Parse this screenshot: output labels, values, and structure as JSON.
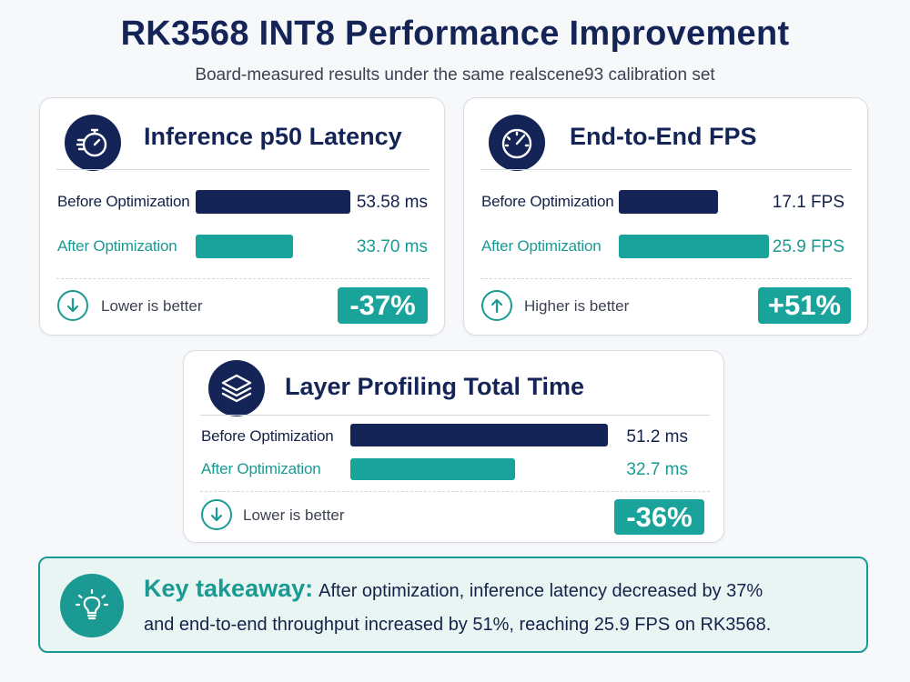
{
  "header": {
    "title": "RK3568 INT8 Performance Improvement",
    "subtitle": "Board-measured results under the same realscene93 calibration set"
  },
  "colors": {
    "before": "#142457",
    "after": "#1aa39b",
    "accent": "#1a9a92"
  },
  "chart_data": [
    {
      "type": "bar",
      "title": "Inference p50 Latency",
      "icon": "stopwatch-icon",
      "categories": [
        "Before Optimization",
        "After Optimization"
      ],
      "values": [
        53.58,
        33.7
      ],
      "value_labels": [
        "53.58 ms",
        "33.70 ms"
      ],
      "unit": "ms",
      "xlim": [
        0,
        53.58
      ],
      "hint": "Lower is better",
      "hint_icon": "arrow-down-icon",
      "change": "-37%"
    },
    {
      "type": "bar",
      "title": "End-to-End FPS",
      "icon": "speedometer-icon",
      "categories": [
        "Before Optimization",
        "After Optimization"
      ],
      "values": [
        17.1,
        25.9
      ],
      "value_labels": [
        "17.1 FPS",
        "25.9 FPS"
      ],
      "unit": "FPS",
      "xlim": [
        0,
        25.9
      ],
      "hint": "Higher is better",
      "hint_icon": "arrow-up-icon",
      "change": "+51%"
    },
    {
      "type": "bar",
      "title": "Layer Profiling Total Time",
      "icon": "layers-icon",
      "categories": [
        "Before Optimization",
        "After Optimization"
      ],
      "values": [
        51.2,
        32.7
      ],
      "value_labels": [
        "51.2 ms",
        "32.7 ms"
      ],
      "unit": "ms",
      "xlim": [
        0,
        51.2
      ],
      "hint": "Lower is better",
      "hint_icon": "arrow-down-icon",
      "change": "-36%"
    }
  ],
  "takeaway": {
    "icon": "lightbulb-icon",
    "label": "Key takeaway:",
    "line1": "After optimization, inference latency decreased by 37%",
    "line2": "and end-to-end throughput increased by 51%, reaching 25.9 FPS on RK3568."
  }
}
